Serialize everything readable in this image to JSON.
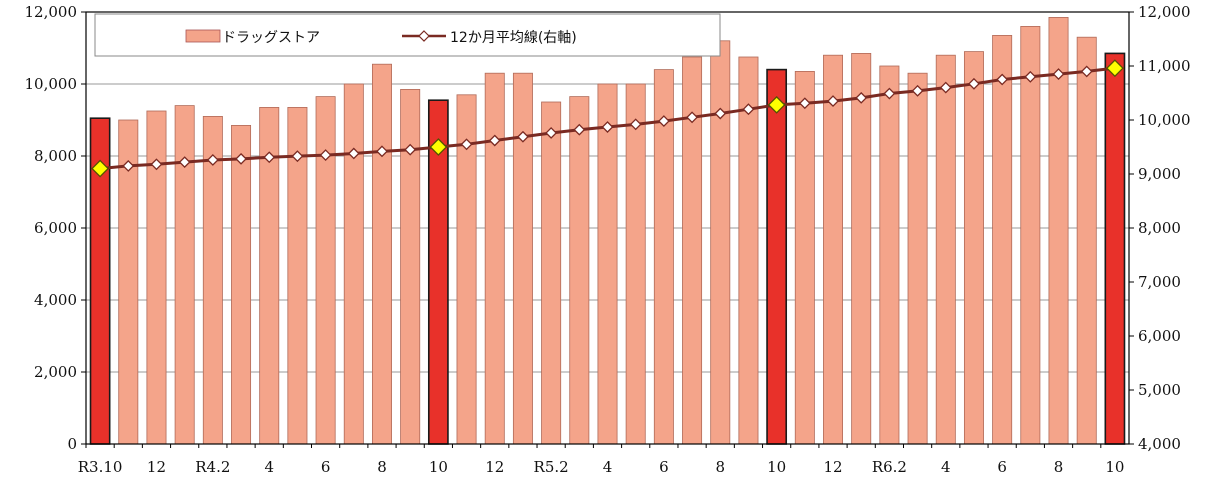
{
  "chart_data": {
    "type": "bar",
    "title": "",
    "x_tick_labels": [
      "R3.10",
      "12",
      "R4.2",
      "4",
      "6",
      "8",
      "10",
      "12",
      "R5.2",
      "4",
      "6",
      "8",
      "10",
      "12",
      "R6.2",
      "4",
      "6",
      "8",
      "10"
    ],
    "categories": [
      "R3.10",
      "R3.11",
      "R3.12",
      "R4.1",
      "R4.2",
      "R4.3",
      "R4.4",
      "R4.5",
      "R4.6",
      "R4.7",
      "R4.8",
      "R4.9",
      "R4.10",
      "R4.11",
      "R4.12",
      "R5.1",
      "R5.2",
      "R5.3",
      "R5.4",
      "R5.5",
      "R5.6",
      "R5.7",
      "R5.8",
      "R5.9",
      "R5.10",
      "R5.11",
      "R5.12",
      "R6.1",
      "R6.2",
      "R6.3",
      "R6.4",
      "R6.5",
      "R6.6",
      "R6.7",
      "R6.8",
      "R6.9",
      "R6.10"
    ],
    "highlight_indices": [
      0,
      12,
      24,
      36
    ],
    "series": [
      {
        "name": "ドラッグストア",
        "type": "bar",
        "axis": "left",
        "color": "#f4a48a",
        "highlight_color": "#e8312a",
        "values": [
          9050,
          9000,
          9250,
          9400,
          9100,
          8850,
          9350,
          9350,
          9650,
          10000,
          10550,
          9850,
          9550,
          9700,
          10300,
          10300,
          9500,
          9650,
          10000,
          10000,
          10400,
          10750,
          11200,
          10750,
          10400,
          10350,
          10800,
          10850,
          10500,
          10300,
          10800,
          10900,
          11350,
          11600,
          11850,
          11300,
          10850
        ]
      },
      {
        "name": "12か月平均線(右軸)",
        "type": "line",
        "axis": "right",
        "color": "#7a2a22",
        "marker_color": "#ffffff",
        "highlight_marker_color": "#ffff00",
        "values": [
          9100,
          9150,
          9180,
          9220,
          9260,
          9280,
          9310,
          9330,
          9350,
          9380,
          9420,
          9450,
          9500,
          9550,
          9620,
          9690,
          9760,
          9820,
          9870,
          9920,
          9980,
          10050,
          10120,
          10200,
          10280,
          10310,
          10350,
          10410,
          10490,
          10540,
          10600,
          10670,
          10750,
          10800,
          10850,
          10900,
          10960
        ]
      }
    ],
    "y_left": {
      "min": 0,
      "max": 12000,
      "ticks": [
        0,
        2000,
        4000,
        6000,
        8000,
        10000,
        12000
      ],
      "tick_labels": [
        "0",
        "2,000",
        "4,000",
        "6,000",
        "8,000",
        "10,000",
        "12,000"
      ]
    },
    "y_right": {
      "min": 4000,
      "max": 12000,
      "ticks": [
        4000,
        5000,
        6000,
        7000,
        8000,
        9000,
        10000,
        11000,
        12000
      ],
      "tick_labels": [
        "4,000",
        "5,000",
        "6,000",
        "7,000",
        "8,000",
        "9,000",
        "10,000",
        "11,000",
        "12,000"
      ]
    },
    "grid": true,
    "legend_position": "top-left"
  }
}
